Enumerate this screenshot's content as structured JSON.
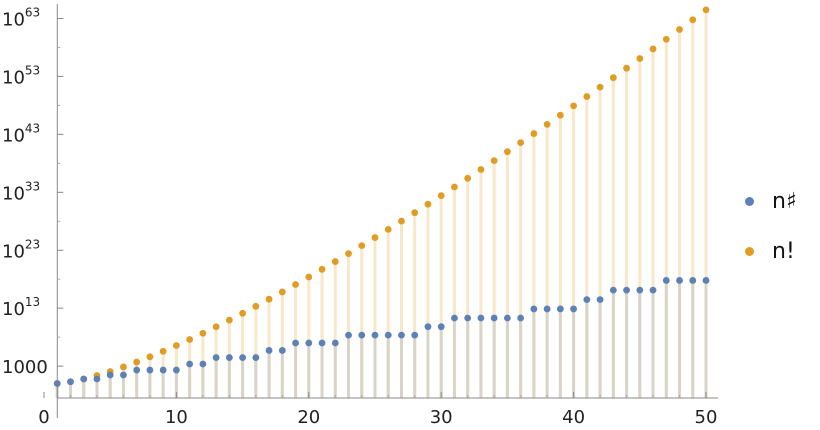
{
  "chart_data": {
    "type": "scatter",
    "title": "",
    "xlabel": "",
    "ylabel": "",
    "y_scale": "log10",
    "xlim": [
      0,
      50
    ],
    "ylim_log10": [
      -2.5,
      65.5
    ],
    "grid": false,
    "legend_position": "right",
    "filling": "stems to axis",
    "x_ticks": [
      {
        "value": 0,
        "label": "0"
      },
      {
        "value": 10,
        "label": "10"
      },
      {
        "value": 20,
        "label": "20"
      },
      {
        "value": 30,
        "label": "30"
      },
      {
        "value": 40,
        "label": "40"
      },
      {
        "value": 50,
        "label": "50"
      }
    ],
    "y_ticks": [
      {
        "log10": 3,
        "label": "1000",
        "exp": ""
      },
      {
        "log10": 13,
        "label": "10",
        "exp": "13"
      },
      {
        "log10": 23,
        "label": "10",
        "exp": "23"
      },
      {
        "log10": 33,
        "label": "10",
        "exp": "33"
      },
      {
        "log10": 43,
        "label": "10",
        "exp": "43"
      },
      {
        "log10": 53,
        "label": "10",
        "exp": "53"
      },
      {
        "log10": 63,
        "label": "10",
        "exp": "63"
      }
    ],
    "x": [
      1,
      2,
      3,
      4,
      5,
      6,
      7,
      8,
      9,
      10,
      11,
      12,
      13,
      14,
      15,
      16,
      17,
      18,
      19,
      20,
      21,
      22,
      23,
      24,
      25,
      26,
      27,
      28,
      29,
      30,
      31,
      32,
      33,
      34,
      35,
      36,
      37,
      38,
      39,
      40,
      41,
      42,
      43,
      44,
      45,
      46,
      47,
      48,
      49,
      50
    ],
    "series": [
      {
        "name": "n♯",
        "color": "#5e81b5",
        "stem_color": "#d9d4c8",
        "log10_values": [
          0,
          0.301,
          0.778,
          0.778,
          1.477,
          1.477,
          2.322,
          2.322,
          2.322,
          2.322,
          3.364,
          3.364,
          4.477,
          4.477,
          4.477,
          4.477,
          5.708,
          5.708,
          6.987,
          6.987,
          6.987,
          6.987,
          8.348,
          8.348,
          8.348,
          8.348,
          8.348,
          8.348,
          9.81,
          9.81,
          11.302,
          11.302,
          11.302,
          11.302,
          11.302,
          11.302,
          12.871,
          12.871,
          12.871,
          12.871,
          14.483,
          14.483,
          16.117,
          16.117,
          16.117,
          16.117,
          17.789,
          17.789,
          17.789,
          17.789
        ]
      },
      {
        "name": "n!",
        "color": "#e19c24",
        "stem_color": "#f8e8c9",
        "log10_values": [
          0,
          0.301,
          0.778,
          1.38,
          2.079,
          2.857,
          3.702,
          4.606,
          5.56,
          6.56,
          7.601,
          8.68,
          9.794,
          10.941,
          12.117,
          13.321,
          14.551,
          15.806,
          17.085,
          18.386,
          19.708,
          21.051,
          22.413,
          23.793,
          25.19,
          26.606,
          28.037,
          29.484,
          30.947,
          32.423,
          33.915,
          35.42,
          36.939,
          38.47,
          40.015,
          41.571,
          43.139,
          44.719,
          46.31,
          47.912,
          49.525,
          51.148,
          52.782,
          54.426,
          56.079,
          57.742,
          59.414,
          61.096,
          62.786,
          64.483
        ]
      }
    ]
  }
}
